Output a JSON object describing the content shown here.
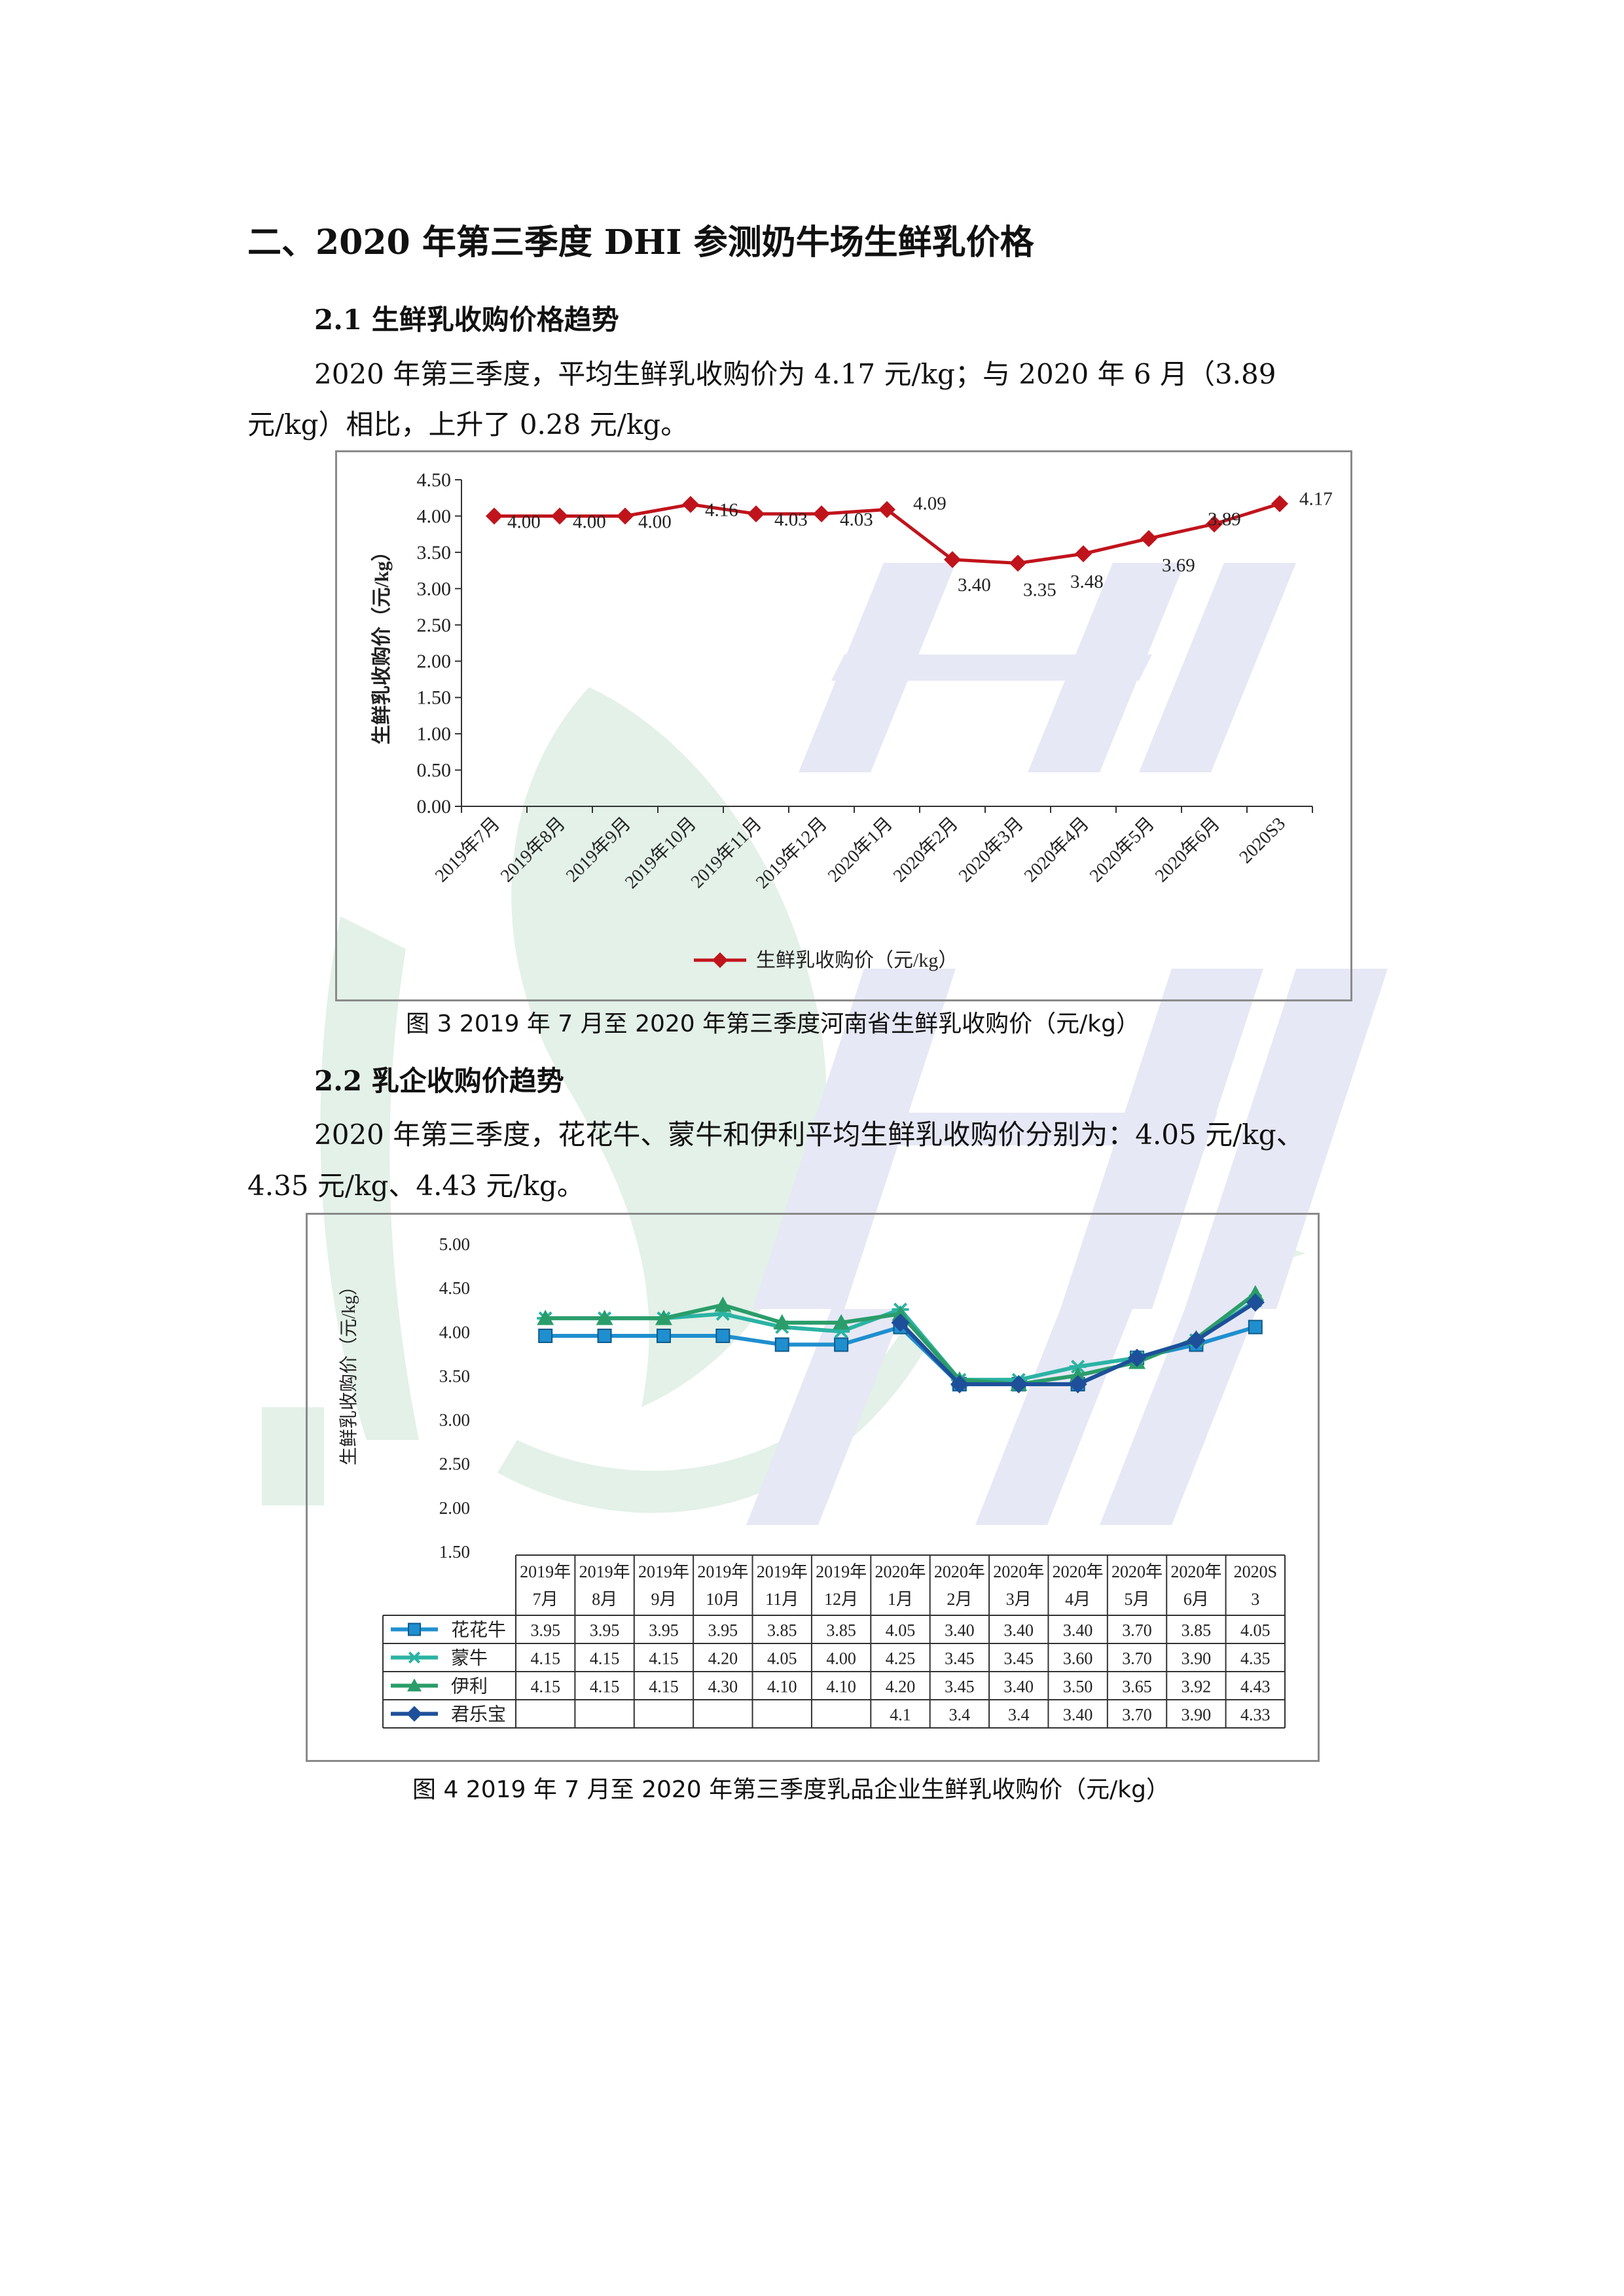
{
  "heading": "二、2020 年第三季度 DHI 参测奶牛场生鲜乳价格",
  "section1": {
    "title": "2.1  生鲜乳收购价格趋势",
    "para_line1": "2020 年第三季度，平均生鲜乳收购价为 4.17 元/kg；与 2020 年 6 月（3.89",
    "para_line2": "元/kg）相比，上升了 0.28 元/kg。"
  },
  "figure3_caption": "图  3    2019 年 7 月至 2020 年第三季度河南省生鲜乳收购价（元/kg）",
  "section2": {
    "title": "2.2  乳企收购价趋势",
    "para_line1": "2020 年第三季度，花花牛、蒙牛和伊利平均生鲜乳收购价分别为：4.05 元/kg、",
    "para_line2": "4.35 元/kg、4.43 元/kg。"
  },
  "figure4_caption": "图  4 2019 年 7 月至 2020 年第三季度乳品企业生鲜乳收购价（元/kg）",
  "colors": {
    "red_series": "#c0141c",
    "huahuaniu": "#1f8fcf",
    "mengniu": "#2bb3a3",
    "yili": "#2a9d6a",
    "junlebao": "#1e4f9a",
    "watermark_green": "#e3f1e8",
    "watermark_blue": "#e6e8f5"
  },
  "chart_data": [
    {
      "type": "line",
      "ylabel": "生鲜乳收购价（元/kg）",
      "ylim": [
        0,
        4.5
      ],
      "yticks": [
        "0.00",
        "0.50",
        "1.00",
        "1.50",
        "2.00",
        "2.50",
        "3.00",
        "3.50",
        "4.00",
        "4.50"
      ],
      "categories": [
        "2019年7月",
        "2019年8月",
        "2019年9月",
        "2019年10月",
        "2019年11月",
        "2019年12月",
        "2020年1月",
        "2020年2月",
        "2020年3月",
        "2020年4月",
        "2020年5月",
        "2020年6月",
        "2020S3"
      ],
      "series": [
        {
          "name": "生鲜乳收购价（元/kg）",
          "values": [
            4.0,
            4.0,
            4.0,
            4.16,
            4.03,
            4.03,
            4.09,
            3.4,
            3.35,
            3.48,
            3.69,
            3.89,
            4.17
          ],
          "labels": [
            "4.00",
            "4.00",
            "4.00",
            "4.16",
            "4.03",
            "4.03",
            "4.09",
            "3.40",
            "3.35",
            "3.48",
            "3.69",
            "3.89",
            "4.17"
          ]
        }
      ],
      "legend": "bottom-center",
      "grid": false
    },
    {
      "type": "line",
      "ylabel": "生鲜乳收购价（元/kg）",
      "ylim": [
        1.5,
        5.0
      ],
      "yticks": [
        "1.50",
        "2.00",
        "2.50",
        "3.00",
        "3.50",
        "4.00",
        "4.50",
        "5.00"
      ],
      "categories": [
        [
          "2019年",
          "7月"
        ],
        [
          "2019年",
          "8月"
        ],
        [
          "2019年",
          "9月"
        ],
        [
          "2019年",
          "10月"
        ],
        [
          "2019年",
          "11月"
        ],
        [
          "2019年",
          "12月"
        ],
        [
          "2020年",
          "1月"
        ],
        [
          "2020年",
          "2月"
        ],
        [
          "2020年",
          "3月"
        ],
        [
          "2020年",
          "4月"
        ],
        [
          "2020年",
          "5月"
        ],
        [
          "2020年",
          "6月"
        ],
        [
          "2020S",
          "3"
        ]
      ],
      "series": [
        {
          "name": "花花牛",
          "values": [
            3.95,
            3.95,
            3.95,
            3.95,
            3.85,
            3.85,
            4.05,
            3.4,
            3.4,
            3.4,
            3.7,
            3.85,
            4.05
          ],
          "cells": [
            "3.95",
            "3.95",
            "3.95",
            "3.95",
            "3.85",
            "3.85",
            "4.05",
            "3.40",
            "3.40",
            "3.40",
            "3.70",
            "3.85",
            "4.05"
          ]
        },
        {
          "name": "蒙牛",
          "values": [
            4.15,
            4.15,
            4.15,
            4.2,
            4.05,
            4.0,
            4.25,
            3.45,
            3.45,
            3.6,
            3.7,
            3.9,
            4.35
          ],
          "cells": [
            "4.15",
            "4.15",
            "4.15",
            "4.20",
            "4.05",
            "4.00",
            "4.25",
            "3.45",
            "3.45",
            "3.60",
            "3.70",
            "3.90",
            "4.35"
          ]
        },
        {
          "name": "伊利",
          "values": [
            4.15,
            4.15,
            4.15,
            4.3,
            4.1,
            4.1,
            4.2,
            3.45,
            3.4,
            3.5,
            3.65,
            3.92,
            4.43
          ],
          "cells": [
            "4.15",
            "4.15",
            "4.15",
            "4.30",
            "4.10",
            "4.10",
            "4.20",
            "3.45",
            "3.40",
            "3.50",
            "3.65",
            "3.92",
            "4.43"
          ]
        },
        {
          "name": "君乐宝",
          "values": [
            null,
            null,
            null,
            null,
            null,
            null,
            4.1,
            3.4,
            3.4,
            3.4,
            3.7,
            3.9,
            4.33
          ],
          "cells": [
            "",
            "",
            "",
            "",
            "",
            "",
            "4.1",
            "3.4",
            "3.4",
            "3.40",
            "3.70",
            "3.90",
            "4.33"
          ]
        }
      ],
      "legend": "data-table-bottom",
      "grid": false
    }
  ]
}
